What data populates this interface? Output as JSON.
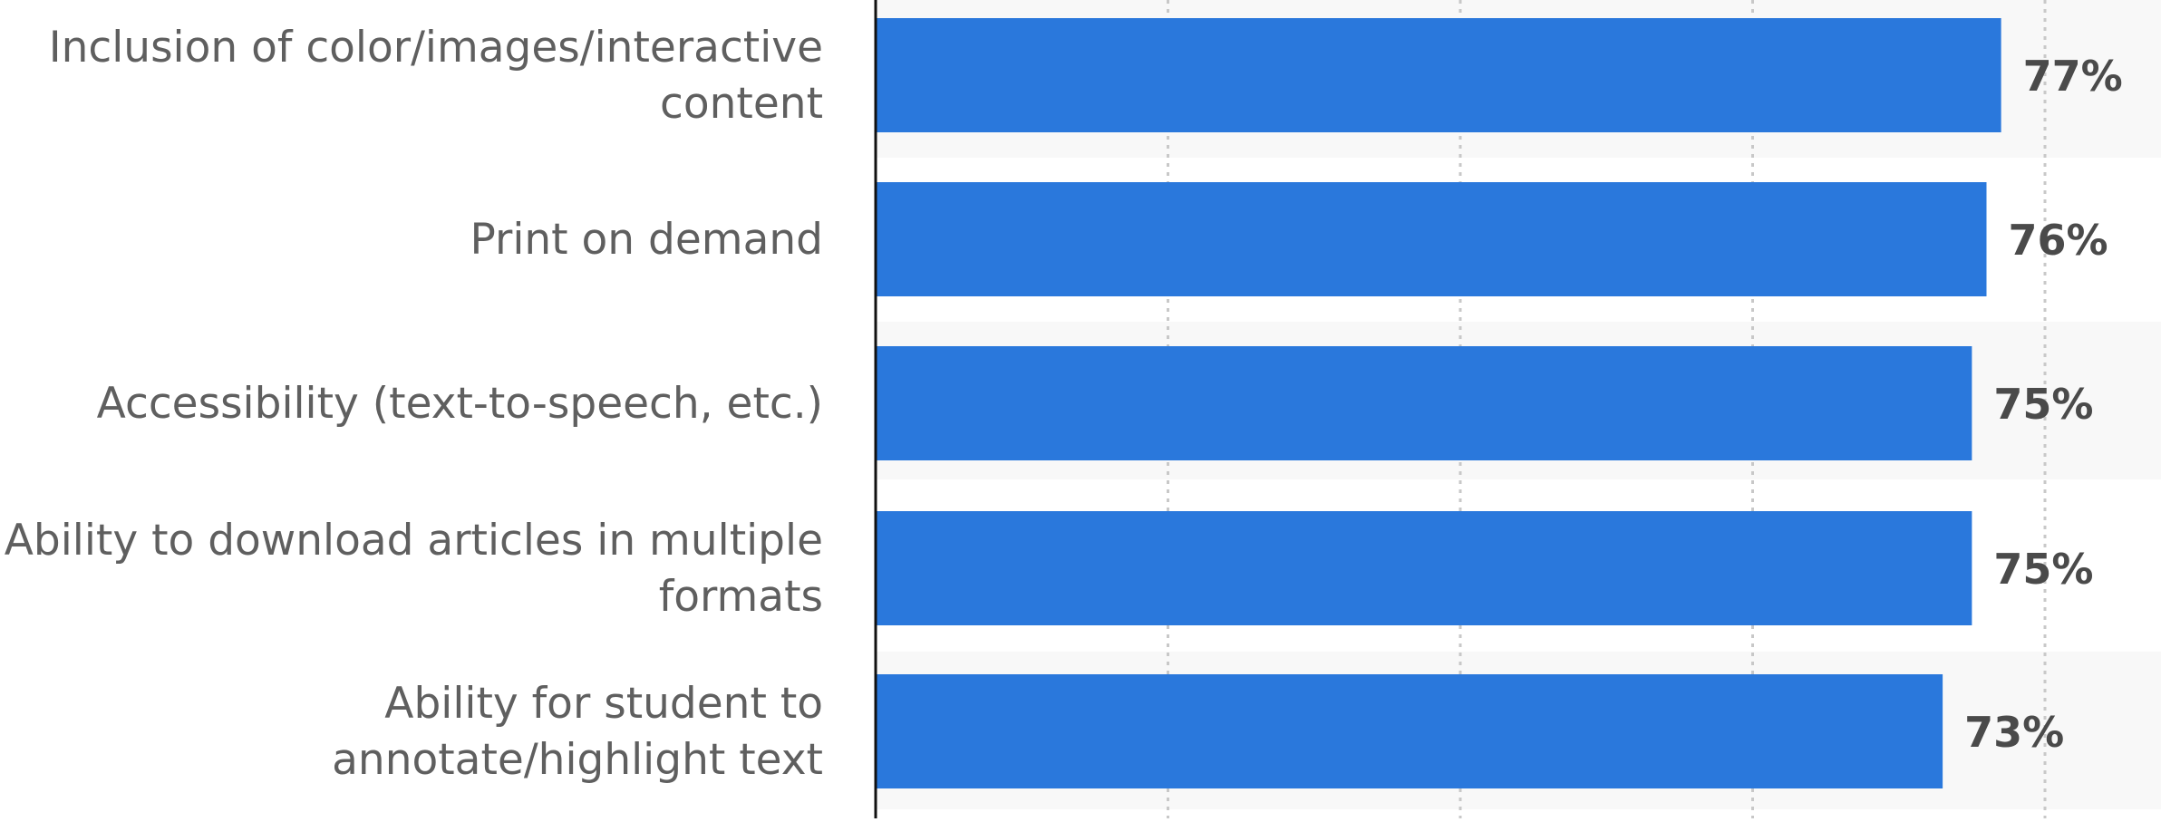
{
  "colors": {
    "bar": "#2a78dc",
    "band": "#f8f8f8",
    "grid": "#c8c8c8",
    "axis": "#111111",
    "category_text": "#5f5f5f",
    "value_text": "#4a4a4a"
  },
  "chart_data": {
    "type": "bar",
    "orientation": "horizontal",
    "categories": [
      [
        "Inclusion of color/images/interactive",
        "content"
      ],
      [
        "Print on demand"
      ],
      [
        "Accessibility (text-to-speech, etc.)"
      ],
      [
        "Ability to download articles in multiple",
        "formats"
      ],
      [
        "Ability for student to",
        "annotate/highlight text"
      ]
    ],
    "values": [
      77,
      76,
      75,
      75,
      73
    ],
    "value_labels": [
      "77%",
      "76%",
      "75%",
      "75%",
      "73%"
    ],
    "xlim": [
      0,
      80
    ],
    "x_gridlines": [
      20,
      40,
      60,
      80
    ],
    "grid": true,
    "alternating_row_bands": true
  }
}
